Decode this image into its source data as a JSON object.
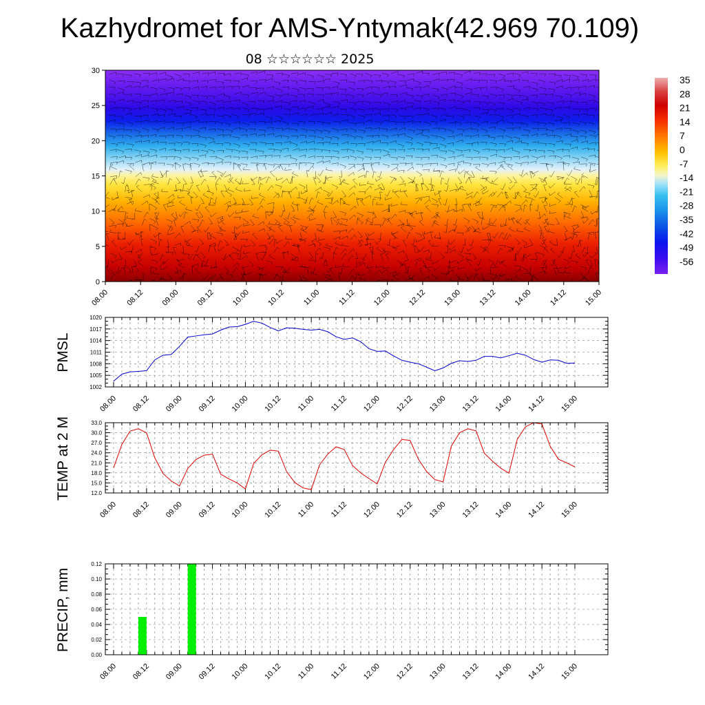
{
  "title": "Kazhydromet for AMS-Yntymak(42.969 70.109)",
  "subtitle": "08 ☆☆☆☆☆☆ 2025",
  "time_labels": [
    "08.00",
    "08.12",
    "09.00",
    "09.12",
    "10.00",
    "10.12",
    "11.00",
    "11.12",
    "12.00",
    "12.12",
    "13.00",
    "13.12",
    "14.00",
    "14.12",
    "15.00"
  ],
  "colors": {
    "pmsl_line": "#0000cc",
    "temp_line": "#dd0000",
    "precip_bar": "#00ee00"
  },
  "chart_data": [
    {
      "type": "heatmap",
      "name": "temperature-cross-section",
      "x_ticks": [
        "08.00",
        "08.12",
        "09.00",
        "09.12",
        "10.00",
        "10.12",
        "11.00",
        "11.12",
        "12.00",
        "12.12",
        "13.00",
        "13.12",
        "14.00",
        "14.12",
        "15.00"
      ],
      "y_ticks": [
        "0",
        "5",
        "10",
        "15",
        "20",
        "25",
        "30"
      ],
      "ylim": [
        0,
        30
      ],
      "colorbar": {
        "labels": [
          "35",
          "28",
          "21",
          "14",
          "7",
          "0",
          "-7",
          "-14",
          "-21",
          "-28",
          "-35",
          "-42",
          "-49",
          "-56"
        ],
        "range": [
          -63,
          42
        ]
      },
      "overlay": "wind-barbs"
    },
    {
      "type": "line",
      "ylabel": "PMSL",
      "ylim": [
        1002,
        1020
      ],
      "y_ticks": [
        "1002",
        "1005",
        "1008",
        "1011",
        "1014",
        "1017",
        "1020"
      ],
      "x": [
        0,
        3,
        6,
        9,
        12,
        15,
        18,
        21,
        24,
        27,
        30,
        33,
        36,
        39,
        42,
        45,
        48,
        51,
        54,
        57,
        60,
        63,
        66,
        69,
        72,
        75,
        78,
        81,
        84,
        87,
        90,
        93,
        96,
        99,
        102,
        105,
        108,
        111,
        114,
        117,
        120,
        123,
        126,
        129,
        132,
        135,
        138,
        141,
        144,
        147,
        150,
        153,
        156,
        159,
        162,
        165,
        168
      ],
      "values": [
        1003.5,
        1005.3,
        1005.9,
        1006.0,
        1006.2,
        1009.0,
        1010.2,
        1010.4,
        1012.5,
        1014.9,
        1015.2,
        1015.5,
        1015.7,
        1016.7,
        1017.5,
        1017.6,
        1018.2,
        1019.0,
        1018.5,
        1017.4,
        1016.5,
        1017.3,
        1017.2,
        1016.9,
        1016.7,
        1016.9,
        1016.3,
        1015.0,
        1014.3,
        1014.7,
        1013.7,
        1011.9,
        1011.2,
        1011.3,
        1010.0,
        1008.9,
        1008.4,
        1008.0,
        1007.1,
        1006.2,
        1006.9,
        1008.1,
        1008.8,
        1008.6,
        1008.9,
        1009.9,
        1009.9,
        1009.5,
        1010.1,
        1010.7,
        1010.2,
        1009.1,
        1008.4,
        1009.0,
        1008.9,
        1008.1,
        1008.2
      ],
      "x_ticks": [
        "08.00",
        "08.12",
        "09.00",
        "09.12",
        "10.00",
        "10.12",
        "11.00",
        "11.12",
        "12.00",
        "12.12",
        "13.00",
        "13.12",
        "14.00",
        "14.12",
        "15.00"
      ]
    },
    {
      "type": "line",
      "ylabel": "TEMP at 2 M",
      "ylim": [
        12,
        33
      ],
      "y_ticks": [
        "12.0",
        "15.0",
        "18.0",
        "21.0",
        "24.0",
        "27.0",
        "30.0",
        "33.0"
      ],
      "x": [
        0,
        3,
        6,
        9,
        12,
        15,
        18,
        21,
        24,
        27,
        30,
        33,
        36,
        39,
        42,
        45,
        48,
        51,
        54,
        57,
        60,
        63,
        66,
        69,
        72,
        75,
        78,
        81,
        84,
        87,
        90,
        93,
        96,
        99,
        102,
        105,
        108,
        111,
        114,
        117,
        120,
        123,
        126,
        129,
        132,
        135,
        138,
        141,
        144,
        147,
        150,
        153,
        156,
        159,
        162,
        165,
        168
      ],
      "values": [
        19.5,
        26.5,
        30.5,
        31.2,
        30.0,
        22.5,
        17.8,
        15.6,
        14.1,
        19.3,
        22.0,
        23.3,
        23.6,
        17.6,
        16.2,
        15.0,
        13.2,
        20.8,
        23.4,
        24.8,
        24.5,
        18.4,
        15.1,
        13.5,
        13.0,
        20.4,
        23.6,
        25.8,
        25.0,
        20.2,
        18.0,
        16.3,
        14.7,
        21.2,
        25.0,
        28.0,
        27.7,
        22.1,
        18.4,
        16.0,
        15.3,
        26.0,
        30.0,
        31.2,
        30.6,
        23.9,
        21.5,
        19.4,
        17.9,
        28.0,
        31.8,
        33.0,
        32.6,
        26.0,
        22.1,
        21.0,
        19.8
      ],
      "x_ticks": [
        "08.00",
        "08.12",
        "09.00",
        "09.12",
        "10.00",
        "10.12",
        "11.00",
        "11.12",
        "12.00",
        "12.12",
        "13.00",
        "13.12",
        "14.00",
        "14.12",
        "15.00"
      ]
    },
    {
      "type": "bar",
      "ylabel": "PRECIP, mm",
      "ylim": [
        0,
        0.12
      ],
      "y_ticks": [
        "0.00",
        "0.02",
        "0.04",
        "0.06",
        "0.08",
        "0.10",
        "0.12"
      ],
      "bars": [
        {
          "x_from": 9,
          "x_to": 12,
          "value": 0.05
        },
        {
          "x_from": 27,
          "x_to": 30,
          "value": 0.12
        }
      ],
      "x_ticks": [
        "08.00",
        "08.12",
        "09.00",
        "09.12",
        "10.00",
        "10.12",
        "11.00",
        "11.12",
        "12.00",
        "12.12",
        "13.00",
        "13.12",
        "14.00",
        "14.12",
        "15.00"
      ]
    }
  ]
}
